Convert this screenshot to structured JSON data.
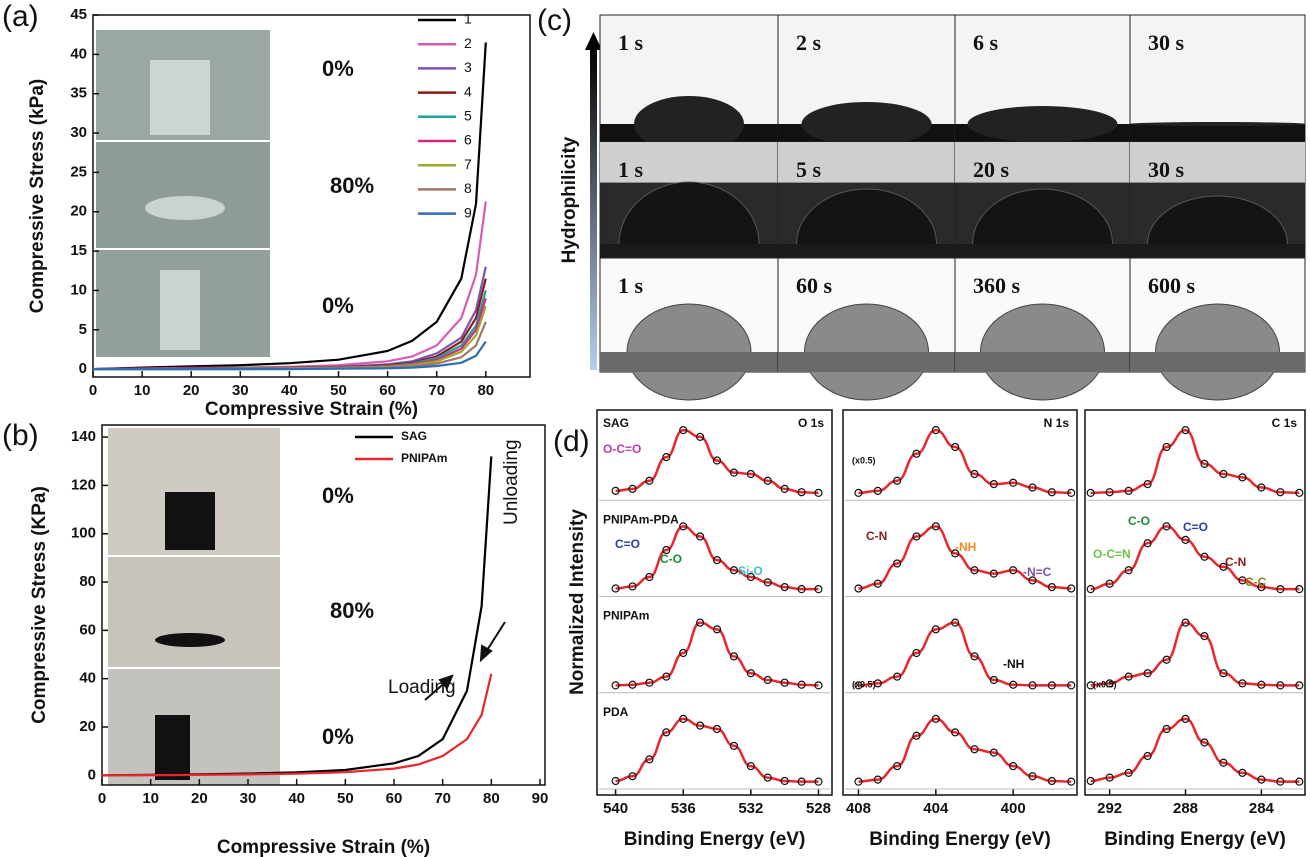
{
  "panel_labels": [
    "(a)",
    "(b)",
    "(c)",
    "(d)"
  ],
  "panel_c": {
    "ylabel": "Hydrophilicity",
    "rows": [
      [
        "1 s",
        "2 s",
        "6 s",
        "30 s"
      ],
      [
        "1 s",
        "5 s",
        "20 s",
        "30 s"
      ],
      [
        "1 s",
        "60 s",
        "360 s",
        "600 s"
      ]
    ]
  },
  "chart_data": [
    {
      "type": "line",
      "xlabel": "Compressive Strain (%)",
      "ylabel": "Compressive Stress (kPa)",
      "x": [
        0,
        10,
        20,
        30,
        40,
        50,
        60,
        65,
        70,
        75,
        78,
        80
      ],
      "xlim": [
        0,
        89
      ],
      "ylim": [
        -1,
        45
      ],
      "xticks": [
        0,
        10,
        20,
        30,
        40,
        50,
        60,
        70,
        80
      ],
      "yticks": [
        0,
        5,
        10,
        15,
        20,
        25,
        30,
        35,
        40,
        45
      ],
      "annotations": [
        "0%",
        "80%",
        "0%"
      ],
      "series": [
        {
          "name": "1",
          "color": "#000000",
          "values": [
            0,
            0.2,
            0.35,
            0.5,
            0.75,
            1.2,
            2.3,
            3.6,
            6,
            11.5,
            21,
            41.5
          ]
        },
        {
          "name": "2",
          "color": "#d65db1",
          "values": [
            0,
            0.1,
            0.15,
            0.2,
            0.3,
            0.5,
            1,
            1.6,
            3,
            6.5,
            12,
            21.3
          ]
        },
        {
          "name": "3",
          "color": "#7b52ae",
          "values": [
            0,
            0.05,
            0.1,
            0.15,
            0.2,
            0.3,
            0.6,
            1,
            2,
            4,
            7.5,
            13
          ]
        },
        {
          "name": "4",
          "color": "#8b1a1a",
          "values": [
            0,
            0.05,
            0.1,
            0.1,
            0.15,
            0.25,
            0.5,
            0.8,
            1.6,
            3.5,
            6.5,
            11.5
          ]
        },
        {
          "name": "5",
          "color": "#1aa39a",
          "values": [
            0,
            0,
            0.05,
            0.1,
            0.1,
            0.2,
            0.4,
            0.7,
            1.4,
            3,
            5.5,
            10
          ]
        },
        {
          "name": "6",
          "color": "#d6287e",
          "values": [
            0,
            0,
            0.05,
            0.05,
            0.1,
            0.2,
            0.35,
            0.6,
            1.2,
            2.6,
            5,
            9
          ]
        },
        {
          "name": "7",
          "color": "#9aaa2c",
          "values": [
            0,
            0,
            0,
            0.05,
            0.1,
            0.15,
            0.3,
            0.5,
            1,
            2.2,
            4.3,
            8
          ]
        },
        {
          "name": "8",
          "color": "#a07868",
          "values": [
            0,
            0,
            0,
            0,
            0.05,
            0.1,
            0.2,
            0.35,
            0.7,
            1.5,
            3,
            6
          ]
        },
        {
          "name": "9",
          "color": "#2f6db5",
          "values": [
            0,
            0,
            0,
            0,
            0,
            0.05,
            0.1,
            0.2,
            0.4,
            0.8,
            1.7,
            3.5
          ]
        }
      ]
    },
    {
      "type": "line",
      "xlabel": "Compressive Strain (%)",
      "ylabel": "Compressive Stress (KPa)",
      "x": [
        0,
        10,
        20,
        30,
        40,
        50,
        60,
        65,
        70,
        75,
        78,
        80
      ],
      "xlim": [
        0,
        90
      ],
      "ylim": [
        -4,
        145
      ],
      "xticks": [
        0,
        10,
        20,
        30,
        40,
        50,
        60,
        70,
        80,
        90
      ],
      "yticks": [
        0,
        20,
        40,
        60,
        80,
        100,
        120,
        140
      ],
      "annotations": [
        "0%",
        "80%",
        "0%",
        "Loading",
        "Unloading"
      ],
      "series": [
        {
          "name": "SAG",
          "color": "#000000",
          "values": [
            0,
            0.2,
            0.4,
            0.7,
            1.2,
            2.2,
            5,
            8,
            15,
            35,
            70,
            132
          ]
        },
        {
          "name": "PNIPAm",
          "color": "#e8262b",
          "values": [
            0,
            0.1,
            0.2,
            0.4,
            0.7,
            1.3,
            2.8,
            4.5,
            8,
            15,
            25,
            42
          ]
        }
      ]
    },
    {
      "type": "spectra",
      "title": "O 1s",
      "xlabel": "Binding Energy (eV)",
      "ylabel": "Normalized Intensity",
      "x": [
        540,
        539,
        538,
        537,
        536,
        535,
        534,
        533,
        532,
        531,
        530,
        529,
        528
      ],
      "xlim": [
        541.1,
        527.2
      ],
      "ylim": [
        0,
        1.1
      ],
      "xticks": [
        540,
        536,
        532,
        528
      ],
      "annotations": [
        {
          "text": "O-C=O",
          "color": "#c03ab0"
        },
        {
          "text": "C=O",
          "color": "#2a3ea8"
        },
        {
          "text": "C-O",
          "color": "#1b8a3a"
        },
        {
          "text": "Si-O",
          "color": "#3cc0d8"
        }
      ],
      "series": [
        {
          "name": "SAG",
          "color": "#e8262b",
          "values": [
            0.05,
            0.08,
            0.2,
            0.55,
            0.95,
            0.85,
            0.5,
            0.32,
            0.3,
            0.2,
            0.08,
            0.03,
            0.02
          ]
        },
        {
          "name": "PNIPAm-PDA",
          "color": "#e8262b",
          "values": [
            0.03,
            0.06,
            0.2,
            0.6,
            0.95,
            0.8,
            0.45,
            0.3,
            0.2,
            0.12,
            0.05,
            0.02,
            0.02
          ]
        },
        {
          "name": "PNIPAm",
          "color": "#e8262b",
          "values": [
            0.02,
            0.03,
            0.06,
            0.15,
            0.5,
            0.95,
            0.85,
            0.45,
            0.2,
            0.1,
            0.06,
            0.03,
            0.02
          ]
        },
        {
          "name": "PDA",
          "color": "#e8262b",
          "values": [
            0.03,
            0.1,
            0.35,
            0.75,
            0.95,
            0.85,
            0.8,
            0.55,
            0.25,
            0.08,
            0.03,
            0.02,
            0.02
          ]
        }
      ]
    },
    {
      "type": "spectra",
      "title": "N 1s",
      "xlabel": "Binding Energy (eV)",
      "x": [
        408,
        407,
        406,
        405,
        404,
        403,
        402,
        401,
        400,
        399,
        398,
        397
      ],
      "xlim": [
        408.8,
        396.7
      ],
      "ylim": [
        0,
        1.1
      ],
      "xticks": [
        408,
        404,
        400
      ],
      "annotations": [
        {
          "text": "(x0.5)",
          "color": "#111111"
        },
        {
          "text": "C-N",
          "color": "#8b1a1a"
        },
        {
          "text": "-NH",
          "color": "#f08a1c"
        },
        {
          "text": "-N=C",
          "color": "#7b52ae"
        },
        {
          "text": "(x0.5)",
          "color": "#111111"
        },
        {
          "text": "-NH",
          "color": "#111111"
        }
      ],
      "series": [
        {
          "color": "#e8262b",
          "values": [
            0.02,
            0.05,
            0.2,
            0.6,
            0.95,
            0.7,
            0.3,
            0.15,
            0.17,
            0.1,
            0.03,
            0.02
          ]
        },
        {
          "color": "#e8262b",
          "values": [
            0.03,
            0.1,
            0.4,
            0.8,
            0.95,
            0.55,
            0.3,
            0.25,
            0.3,
            0.15,
            0.05,
            0.03
          ]
        },
        {
          "color": "#e8262b",
          "values": [
            0.02,
            0.05,
            0.15,
            0.5,
            0.85,
            0.95,
            0.45,
            0.1,
            0.03,
            0.02,
            0.02,
            0.02
          ]
        },
        {
          "color": "#e8262b",
          "values": [
            0.02,
            0.05,
            0.25,
            0.7,
            0.95,
            0.75,
            0.5,
            0.45,
            0.25,
            0.1,
            0.03,
            0.02
          ]
        }
      ]
    },
    {
      "type": "spectra",
      "title": "C 1s",
      "xlabel": "Binding Energy (eV)",
      "x": [
        293,
        292,
        291,
        290,
        289,
        288,
        287,
        286,
        285,
        284,
        283,
        282
      ],
      "xlim": [
        293.3,
        281.7
      ],
      "ylim": [
        0,
        1.1
      ],
      "xticks": [
        292,
        288,
        284
      ],
      "annotations": [
        {
          "text": "O-C=N",
          "color": "#6cc24a"
        },
        {
          "text": "C-O",
          "color": "#1b8a3a"
        },
        {
          "text": "C=O",
          "color": "#2a3ea8"
        },
        {
          "text": "C-N",
          "color": "#8b1a1a"
        },
        {
          "text": "C-C",
          "color": "#8a7a1a"
        },
        {
          "text": "(x0.5)",
          "color": "#111111"
        }
      ],
      "series": [
        {
          "color": "#e8262b",
          "values": [
            0.02,
            0.03,
            0.05,
            0.15,
            0.7,
            0.95,
            0.45,
            0.3,
            0.25,
            0.1,
            0.03,
            0.02
          ]
        },
        {
          "color": "#e8262b",
          "values": [
            0.02,
            0.1,
            0.3,
            0.7,
            0.95,
            0.75,
            0.5,
            0.35,
            0.15,
            0.05,
            0.02,
            0.02
          ]
        },
        {
          "color": "#e8262b",
          "values": [
            0.02,
            0.05,
            0.15,
            0.2,
            0.4,
            0.95,
            0.75,
            0.2,
            0.05,
            0.03,
            0.02,
            0.02
          ]
        },
        {
          "color": "#e8262b",
          "values": [
            0.03,
            0.08,
            0.15,
            0.4,
            0.8,
            0.95,
            0.6,
            0.3,
            0.15,
            0.05,
            0.02,
            0.02
          ]
        }
      ]
    }
  ]
}
